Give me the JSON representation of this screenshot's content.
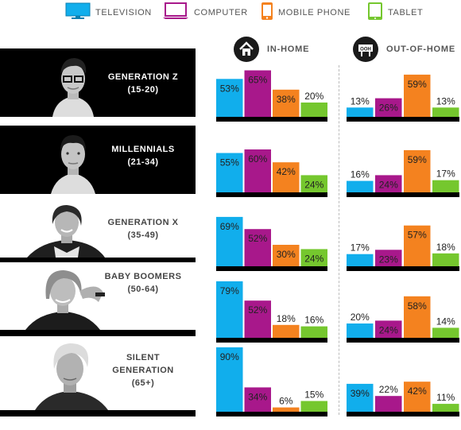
{
  "legend": [
    {
      "label": "TELEVISION",
      "icon": "television-icon",
      "color": "#11aeec"
    },
    {
      "label": "COMPUTER",
      "icon": "computer-icon",
      "color": "#a8188b"
    },
    {
      "label": "MOBILE PHONE",
      "icon": "mobile-phone-icon",
      "color": "#f4821f"
    },
    {
      "label": "TABLET",
      "icon": "tablet-icon",
      "color": "#75c72e"
    }
  ],
  "headers": {
    "in_home": "IN-HOME",
    "out_of_home": "OUT-OF-HOME",
    "ooh_sign": "OOH"
  },
  "generations": [
    {
      "name_line1": "GENERATION Z",
      "name_line2": "",
      "ages": "(15-20)",
      "style": "dark"
    },
    {
      "name_line1": "MILLENNIALS",
      "name_line2": "",
      "ages": "(21-34)",
      "style": "dark"
    },
    {
      "name_line1": "GENERATION X",
      "name_line2": "",
      "ages": "(35-49)",
      "style": "light"
    },
    {
      "name_line1": "BABY BOOMERS",
      "name_line2": "",
      "ages": "(50-64)",
      "style": "light"
    },
    {
      "name_line1": "SILENT",
      "name_line2": "GENERATION",
      "ages": "(65+)",
      "style": "light"
    }
  ],
  "chart_data": {
    "type": "bar",
    "categories": [
      "TELEVISION",
      "COMPUTER",
      "MOBILE PHONE",
      "TABLET"
    ],
    "ylim": [
      0,
      100
    ],
    "in_home": [
      {
        "name": "GENERATION Z",
        "values": [
          53,
          65,
          38,
          20
        ]
      },
      {
        "name": "MILLENNIALS",
        "values": [
          55,
          60,
          42,
          24
        ]
      },
      {
        "name": "GENERATION X",
        "values": [
          69,
          52,
          30,
          24
        ]
      },
      {
        "name": "BABY BOOMERS",
        "values": [
          79,
          52,
          18,
          16
        ]
      },
      {
        "name": "SILENT GENERATION",
        "values": [
          90,
          34,
          6,
          15
        ]
      }
    ],
    "out_of_home": [
      {
        "name": "GENERATION Z",
        "values": [
          13,
          26,
          59,
          13
        ]
      },
      {
        "name": "MILLENNIALS",
        "values": [
          16,
          24,
          59,
          17
        ]
      },
      {
        "name": "GENERATION X",
        "values": [
          17,
          23,
          57,
          18
        ]
      },
      {
        "name": "BABY BOOMERS",
        "values": [
          20,
          24,
          58,
          14
        ]
      },
      {
        "name": "SILENT GENERATION",
        "values": [
          39,
          22,
          42,
          11
        ]
      }
    ],
    "value_suffix": "%"
  }
}
